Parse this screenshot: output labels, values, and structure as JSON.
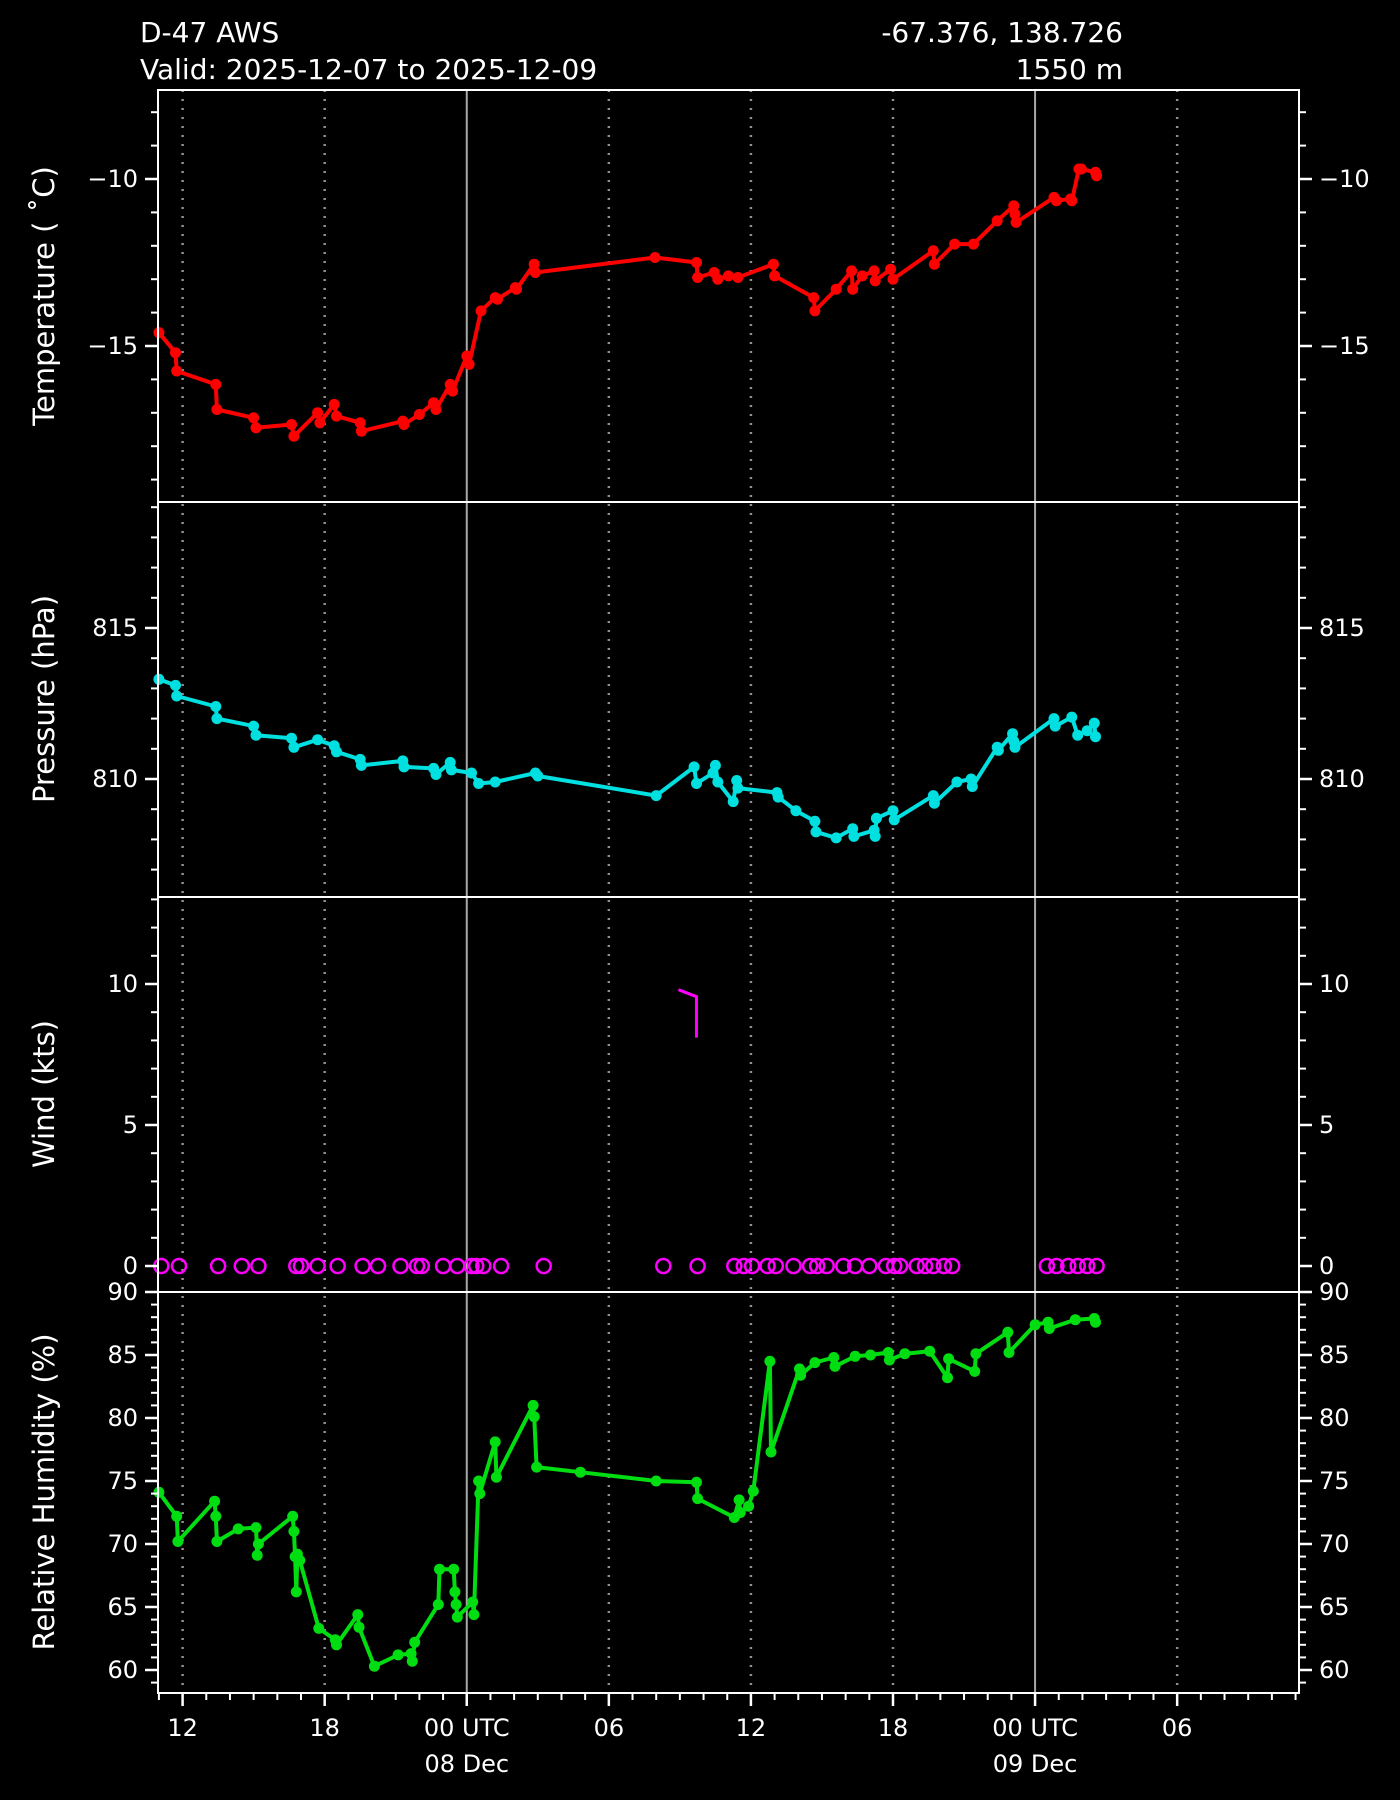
{
  "header": {
    "station": "D-47 AWS",
    "coords": "-67.376, 138.726",
    "valid": "Valid: 2025-12-07 to 2025-12-09",
    "elevation": "1550 m"
  },
  "x_axis": {
    "note": "t = hours since 2025-12-07 12:00 UTC",
    "ticks": [
      {
        "t": 0,
        "label": "12",
        "solid": false
      },
      {
        "t": 6,
        "label": "18",
        "solid": false
      },
      {
        "t": 12,
        "label": "00 UTC",
        "solid": true
      },
      {
        "t": 18,
        "label": "06",
        "solid": false
      },
      {
        "t": 24,
        "label": "12",
        "solid": false
      },
      {
        "t": 30,
        "label": "18",
        "solid": false
      },
      {
        "t": 36,
        "label": "00 UTC",
        "solid": true
      },
      {
        "t": 42,
        "label": "06",
        "solid": false
      }
    ],
    "day_labels": [
      {
        "t": 12,
        "label": "08 Dec"
      },
      {
        "t": 36,
        "label": "09 Dec"
      }
    ],
    "tlim": [
      -1.04,
      47.15
    ]
  },
  "chart_data": [
    {
      "type": "line",
      "name": "temperature",
      "ylabel": "Temperature ( ˚C)",
      "color": "#ff0000",
      "ylim": [
        -19.67,
        -7.34
      ],
      "yticks": [
        {
          "v": -10,
          "label": "−10"
        },
        {
          "v": -15,
          "label": "−15"
        }
      ],
      "minor_step": 1,
      "x": [
        -1.0,
        -0.3,
        -0.25,
        1.4,
        1.45,
        3.0,
        3.1,
        4.6,
        4.7,
        5.7,
        5.8,
        6.4,
        6.5,
        7.5,
        7.55,
        9.3,
        9.35,
        10.0,
        10.6,
        10.7,
        11.3,
        11.4,
        12.0,
        12.1,
        12.6,
        13.2,
        13.3,
        14.05,
        14.1,
        14.85,
        14.9,
        19.95,
        21.7,
        21.75,
        22.45,
        22.6,
        23.05,
        23.45,
        24.95,
        25.0,
        26.65,
        26.7,
        27.6,
        28.25,
        28.3,
        28.7,
        29.2,
        29.25,
        29.9,
        30.0,
        31.7,
        31.75,
        32.6,
        33.4,
        34.4,
        35.1,
        35.15,
        35.2,
        36.8,
        36.9,
        37.5,
        37.55,
        37.85,
        37.95,
        38.55,
        38.6
      ],
      "y": [
        -14.6,
        -15.2,
        -15.75,
        -16.15,
        -16.9,
        -17.15,
        -17.45,
        -17.35,
        -17.7,
        -17.0,
        -17.3,
        -16.75,
        -17.1,
        -17.3,
        -17.55,
        -17.25,
        -17.35,
        -17.05,
        -16.7,
        -16.9,
        -16.15,
        -16.35,
        -15.3,
        -15.55,
        -13.95,
        -13.55,
        -13.6,
        -13.25,
        -13.3,
        -12.55,
        -12.8,
        -12.35,
        -12.5,
        -12.95,
        -12.8,
        -13.0,
        -12.9,
        -12.95,
        -12.55,
        -12.9,
        -13.55,
        -13.95,
        -13.3,
        -12.75,
        -13.3,
        -12.9,
        -12.75,
        -13.05,
        -12.7,
        -13.0,
        -12.15,
        -12.55,
        -11.95,
        -11.95,
        -11.25,
        -10.8,
        -11.05,
        -11.3,
        -10.55,
        -10.65,
        -10.6,
        -10.65,
        -9.7,
        -9.7,
        -9.8,
        -9.9
      ]
    },
    {
      "type": "line",
      "name": "pressure",
      "ylabel": "Pressure (hPa)",
      "color": "#00e0e0",
      "ylim": [
        806.1,
        819.2
      ],
      "yticks": [
        {
          "v": 815,
          "label": "815"
        },
        {
          "v": 810,
          "label": "810"
        }
      ],
      "minor_step": 1,
      "x": [
        -1.0,
        -0.3,
        -0.25,
        1.4,
        1.45,
        3.0,
        3.1,
        4.6,
        4.7,
        5.7,
        6.4,
        6.5,
        7.5,
        7.55,
        9.3,
        9.35,
        10.6,
        10.7,
        11.3,
        11.35,
        12.2,
        12.5,
        13.2,
        14.9,
        15.0,
        20.0,
        21.6,
        21.7,
        22.4,
        22.5,
        22.6,
        23.25,
        23.4,
        23.45,
        25.1,
        25.15,
        25.9,
        26.7,
        26.75,
        27.6,
        28.3,
        28.35,
        29.2,
        29.25,
        29.3,
        30.0,
        30.05,
        31.7,
        31.75,
        32.7,
        33.3,
        33.35,
        34.4,
        34.45,
        35.05,
        35.1,
        35.15,
        36.8,
        36.85,
        37.55,
        37.8,
        38.2,
        38.5,
        38.55
      ],
      "y": [
        813.3,
        813.1,
        812.75,
        812.4,
        812.0,
        811.75,
        811.45,
        811.35,
        811.05,
        811.3,
        811.1,
        810.9,
        810.65,
        810.45,
        810.6,
        810.4,
        810.35,
        810.15,
        810.55,
        810.3,
        810.2,
        809.85,
        809.9,
        810.2,
        810.1,
        809.45,
        810.4,
        809.85,
        810.2,
        810.45,
        809.9,
        809.25,
        809.95,
        809.7,
        809.55,
        809.4,
        808.95,
        808.6,
        808.25,
        808.05,
        808.35,
        808.1,
        808.3,
        808.1,
        808.7,
        808.95,
        808.65,
        809.45,
        809.2,
        809.9,
        810.0,
        809.75,
        811.05,
        810.95,
        811.5,
        811.25,
        811.05,
        812.0,
        811.75,
        812.05,
        811.45,
        811.6,
        811.85,
        811.4
      ]
    },
    {
      "type": "scatter",
      "name": "wind",
      "ylabel": "Wind (kts)",
      "color": "#ff00ff",
      "ylim": [
        -0.92,
        13.09
      ],
      "yticks": [
        {
          "v": 10,
          "label": "10"
        },
        {
          "v": 5,
          "label": "5"
        },
        {
          "v": 0,
          "label": "0"
        }
      ],
      "minor_step": 1,
      "calm_times": [
        -0.9,
        -0.15,
        1.5,
        2.5,
        3.2,
        4.8,
        5.0,
        5.7,
        6.55,
        7.6,
        8.25,
        9.2,
        9.9,
        10.1,
        11.0,
        11.6,
        12.2,
        12.4,
        12.7,
        13.45,
        15.25,
        20.3,
        21.75,
        23.3,
        23.7,
        24.05,
        24.7,
        25.05,
        25.8,
        26.5,
        26.8,
        27.2,
        27.9,
        28.4,
        29.0,
        29.7,
        30.05,
        30.3,
        31.0,
        31.35,
        31.7,
        32.15,
        32.5,
        36.5,
        36.9,
        37.4,
        37.8,
        38.2,
        38.6
      ],
      "calm_value": 0,
      "barb": {
        "t": 21.7,
        "base_kts": 8.1,
        "top_kts": 9.55
      }
    },
    {
      "type": "line",
      "name": "relative_humidity",
      "ylabel": "Relative Humidity (%)",
      "color": "#00dd11",
      "ylim": [
        58.2,
        90
      ],
      "yticks": [
        {
          "v": 90,
          "label": "90"
        },
        {
          "v": 85,
          "label": "85"
        },
        {
          "v": 80,
          "label": "80"
        },
        {
          "v": 75,
          "label": "75"
        },
        {
          "v": 70,
          "label": "70"
        },
        {
          "v": 65,
          "label": "65"
        },
        {
          "v": 60,
          "label": "60"
        }
      ],
      "minor_step": 1,
      "x": [
        -1.0,
        -0.25,
        -0.2,
        1.35,
        1.4,
        1.45,
        2.35,
        3.1,
        3.15,
        3.2,
        4.65,
        4.7,
        4.75,
        4.8,
        4.85,
        4.95,
        5.75,
        6.45,
        6.5,
        7.4,
        7.45,
        8.1,
        9.1,
        9.65,
        9.7,
        9.8,
        10.8,
        10.85,
        11.45,
        11.5,
        11.55,
        11.6,
        12.25,
        12.3,
        12.5,
        12.55,
        13.2,
        13.25,
        14.8,
        14.85,
        14.95,
        16.8,
        20.0,
        21.7,
        21.75,
        23.3,
        23.5,
        23.55,
        23.9,
        24.1,
        24.8,
        24.85,
        26.05,
        26.1,
        26.7,
        27.5,
        27.55,
        28.4,
        29.05,
        29.8,
        29.85,
        30.5,
        31.55,
        32.3,
        32.35,
        33.45,
        33.5,
        34.85,
        34.9,
        36.0,
        36.55,
        36.6,
        37.7,
        38.5,
        38.55
      ],
      "y": [
        74.1,
        72.2,
        70.2,
        73.4,
        72.2,
        70.2,
        71.2,
        71.3,
        69.1,
        70.0,
        72.2,
        71.0,
        69.0,
        66.2,
        69.2,
        68.7,
        63.3,
        62.4,
        62.0,
        64.4,
        63.4,
        60.3,
        61.2,
        61.3,
        60.7,
        62.2,
        65.2,
        68.0,
        68.0,
        66.2,
        65.2,
        64.2,
        65.4,
        64.4,
        75.0,
        74.0,
        78.1,
        75.3,
        81.0,
        80.1,
        76.1,
        75.7,
        75.0,
        74.9,
        73.6,
        72.1,
        73.5,
        72.5,
        73.0,
        74.2,
        84.5,
        77.3,
        83.9,
        83.4,
        84.4,
        84.8,
        84.1,
        84.9,
        85.0,
        85.2,
        84.6,
        85.1,
        85.3,
        83.2,
        84.7,
        83.7,
        85.1,
        86.8,
        85.2,
        87.4,
        87.6,
        87.1,
        87.8,
        87.9,
        87.6
      ]
    }
  ],
  "style": {
    "grid_dotted_color": "#909090",
    "grid_solid_color": "#a8a8a8",
    "frame_color": "#ffffff",
    "background": "#000000"
  }
}
